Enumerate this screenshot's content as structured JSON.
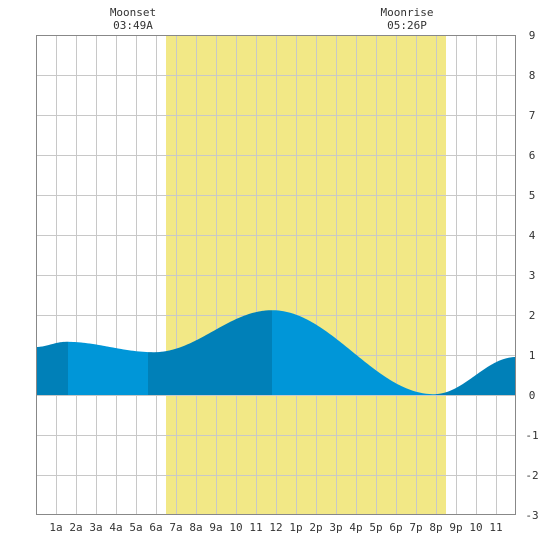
{
  "chart_data": {
    "type": "area",
    "x_ticks": [
      "1a",
      "2a",
      "3a",
      "4a",
      "5a",
      "6a",
      "7a",
      "8a",
      "9a",
      "10",
      "11",
      "12",
      "1p",
      "2p",
      "3p",
      "4p",
      "5p",
      "6p",
      "7p",
      "8p",
      "9p",
      "10",
      "11"
    ],
    "y_ticks": [
      "-3",
      "-2",
      "-1",
      "0",
      "1",
      "2",
      "3",
      "4",
      "5",
      "6",
      "7",
      "8",
      "9"
    ],
    "xlim": [
      0,
      24
    ],
    "ylim": [
      -3,
      9
    ],
    "grid": true,
    "daylight": {
      "start_hour": 6.5,
      "end_hour": 20.5,
      "color": "#f2e886"
    },
    "moon_events": [
      {
        "name": "Moonset",
        "time": "03:49A",
        "hour": 3.82
      },
      {
        "name": "Moonrise",
        "time": "05:26P",
        "hour": 17.43
      }
    ],
    "tide_extrema": [
      {
        "hour": 0.0,
        "height": 1.2
      },
      {
        "hour": 1.5,
        "height": 1.33
      },
      {
        "hour": 5.9,
        "height": 1.07
      },
      {
        "hour": 11.8,
        "height": 2.12
      },
      {
        "hour": 19.9,
        "height": 0.02
      },
      {
        "hour": 24.0,
        "height": 0.95
      }
    ],
    "shade_bands": [
      {
        "start": 0.0,
        "end": 1.6,
        "tone": "dark"
      },
      {
        "start": 1.6,
        "end": 5.6,
        "tone": "light"
      },
      {
        "start": 5.6,
        "end": 11.8,
        "tone": "dark"
      },
      {
        "start": 11.8,
        "end": 20.0,
        "tone": "light"
      },
      {
        "start": 20.0,
        "end": 24.0,
        "tone": "dark"
      }
    ],
    "colors": {
      "tide_dark": "#0080b8",
      "tide_light": "#0096d8",
      "grid": "#c8c8c8",
      "frame": "#888888"
    }
  }
}
